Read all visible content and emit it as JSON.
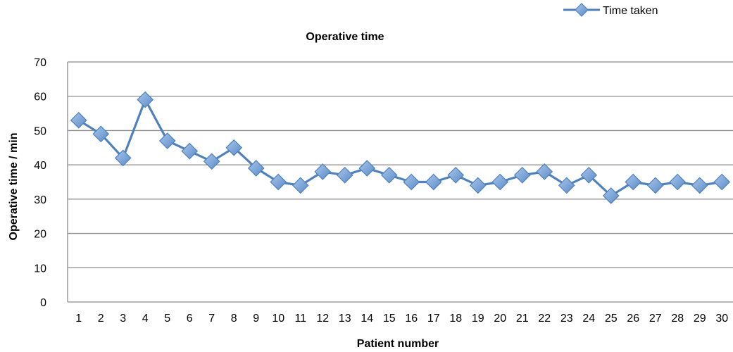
{
  "chart_data": {
    "type": "line",
    "title": "Operative time",
    "xlabel": "Patient number",
    "ylabel": "Operative time / min",
    "ylim": [
      0,
      70
    ],
    "yticks": [
      0,
      10,
      20,
      30,
      40,
      50,
      60,
      70
    ],
    "grid": true,
    "legend_position": "top-right",
    "categories": [
      "1",
      "2",
      "3",
      "4",
      "5",
      "6",
      "7",
      "8",
      "9",
      "10",
      "11",
      "12",
      "13",
      "14",
      "15",
      "16",
      "17",
      "18",
      "19",
      "20",
      "21",
      "22",
      "23",
      "24",
      "25",
      "26",
      "27",
      "28",
      "29",
      "30"
    ],
    "series": [
      {
        "name": "Time taken",
        "marker": "diamond",
        "color": "#4f81bd",
        "marker_fill": "#7ba7d9",
        "values": [
          53,
          49,
          42,
          59,
          47,
          44,
          41,
          45,
          39,
          35,
          34,
          38,
          37,
          39,
          37,
          35,
          35,
          37,
          34,
          35,
          37,
          38,
          34,
          37,
          31,
          35,
          34,
          35,
          34,
          35
        ]
      }
    ]
  }
}
